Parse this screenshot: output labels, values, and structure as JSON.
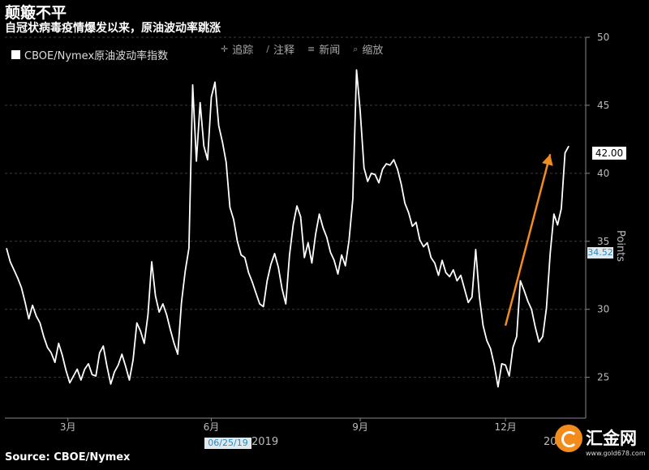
{
  "header": {
    "title": "颠簸不平",
    "subtitle": "自冠状病毒疫情爆发以来，原油波动率跳涨"
  },
  "legend": {
    "label": "CBOE/Nymex原油波动率指数"
  },
  "toolbar": [
    {
      "label": "追踪",
      "icon": "crosshair-icon"
    },
    {
      "label": "注释",
      "icon": "pencil-icon"
    },
    {
      "label": "新闻",
      "icon": "news-icon"
    },
    {
      "label": "缩放",
      "icon": "magnifier-icon"
    }
  ],
  "footer": {
    "source": "Source: CBOE/Nymex"
  },
  "watermark": {
    "name": "汇金网",
    "url": "www.gold678.com"
  },
  "markers": {
    "last_value": "42.00",
    "reference_value": "34.52",
    "crosshair_date": "06/25/19",
    "year": "2019",
    "year_next": "20"
  },
  "colors": {
    "line": "#ffffff",
    "arrow": "#f28c1c",
    "grid": "#3a3a3a",
    "axis": "#888888",
    "accent": "#2a8ac0"
  },
  "chart_data": {
    "type": "line",
    "ylabel": "Points",
    "ylim": [
      22,
      50
    ],
    "yticks": [
      25,
      30,
      35,
      40,
      45,
      50
    ],
    "xlim": [
      0,
      305
    ],
    "xticks": [
      {
        "label": "3月",
        "pos": 33
      },
      {
        "label": "6月",
        "pos": 110
      },
      {
        "label": "9月",
        "pos": 190
      },
      {
        "label": "12月",
        "pos": 268
      }
    ],
    "series": [
      {
        "name": "CBOE/Nymex原油波动率指数",
        "points": [
          [
            0,
            34.5
          ],
          [
            2,
            33.5
          ],
          [
            4,
            32.9
          ],
          [
            6,
            32.3
          ],
          [
            8,
            31.6
          ],
          [
            10,
            30.5
          ],
          [
            12,
            29.3
          ],
          [
            14,
            30.3
          ],
          [
            16,
            29.5
          ],
          [
            18,
            29.0
          ],
          [
            20,
            28.0
          ],
          [
            22,
            27.2
          ],
          [
            24,
            26.8
          ],
          [
            26,
            26.1
          ],
          [
            28,
            27.5
          ],
          [
            30,
            26.6
          ],
          [
            32,
            25.5
          ],
          [
            34,
            24.6
          ],
          [
            36,
            25.1
          ],
          [
            38,
            25.6
          ],
          [
            40,
            24.8
          ],
          [
            42,
            25.6
          ],
          [
            44,
            26.0
          ],
          [
            46,
            25.2
          ],
          [
            48,
            25.1
          ],
          [
            50,
            26.8
          ],
          [
            52,
            27.3
          ],
          [
            54,
            25.8
          ],
          [
            56,
            24.5
          ],
          [
            58,
            25.4
          ],
          [
            60,
            25.9
          ],
          [
            62,
            26.7
          ],
          [
            64,
            25.8
          ],
          [
            66,
            24.8
          ],
          [
            68,
            26.3
          ],
          [
            70,
            29.0
          ],
          [
            72,
            28.4
          ],
          [
            74,
            27.5
          ],
          [
            76,
            29.6
          ],
          [
            78,
            33.5
          ],
          [
            80,
            31.0
          ],
          [
            82,
            29.8
          ],
          [
            84,
            30.4
          ],
          [
            86,
            29.6
          ],
          [
            88,
            28.5
          ],
          [
            90,
            27.5
          ],
          [
            92,
            26.7
          ],
          [
            94,
            30.5
          ],
          [
            96,
            32.8
          ],
          [
            98,
            34.5
          ],
          [
            100,
            46.5
          ],
          [
            102,
            40.9
          ],
          [
            104,
            45.2
          ],
          [
            106,
            42.0
          ],
          [
            108,
            41.0
          ],
          [
            110,
            45.6
          ],
          [
            112,
            46.7
          ],
          [
            114,
            43.5
          ],
          [
            116,
            42.3
          ],
          [
            118,
            40.8
          ],
          [
            120,
            37.5
          ],
          [
            122,
            36.6
          ],
          [
            124,
            35.0
          ],
          [
            126,
            34.0
          ],
          [
            128,
            33.8
          ],
          [
            130,
            32.7
          ],
          [
            132,
            32.0
          ],
          [
            134,
            31.2
          ],
          [
            136,
            30.4
          ],
          [
            138,
            30.2
          ],
          [
            140,
            32.1
          ],
          [
            142,
            33.3
          ],
          [
            144,
            34.1
          ],
          [
            146,
            33.1
          ],
          [
            148,
            31.5
          ],
          [
            150,
            30.4
          ],
          [
            152,
            34.0
          ],
          [
            154,
            36.2
          ],
          [
            156,
            37.6
          ],
          [
            158,
            36.8
          ],
          [
            160,
            33.8
          ],
          [
            162,
            34.9
          ],
          [
            164,
            33.4
          ],
          [
            166,
            35.5
          ],
          [
            168,
            37.0
          ],
          [
            170,
            36.0
          ],
          [
            172,
            35.3
          ],
          [
            174,
            34.2
          ],
          [
            176,
            33.6
          ],
          [
            178,
            32.6
          ],
          [
            180,
            34.0
          ],
          [
            182,
            33.2
          ],
          [
            184,
            35.1
          ],
          [
            186,
            38.1
          ],
          [
            188,
            47.6
          ],
          [
            190,
            44.5
          ],
          [
            192,
            40.4
          ],
          [
            194,
            39.4
          ],
          [
            196,
            40.0
          ],
          [
            198,
            39.9
          ],
          [
            200,
            39.3
          ],
          [
            202,
            40.3
          ],
          [
            204,
            40.7
          ],
          [
            206,
            40.6
          ],
          [
            208,
            41.0
          ],
          [
            210,
            40.3
          ],
          [
            212,
            39.2
          ],
          [
            214,
            37.8
          ],
          [
            216,
            37.1
          ],
          [
            218,
            36.1
          ],
          [
            220,
            36.4
          ],
          [
            222,
            35.1
          ],
          [
            224,
            34.6
          ],
          [
            226,
            34.9
          ],
          [
            228,
            33.8
          ],
          [
            230,
            33.4
          ],
          [
            232,
            32.5
          ],
          [
            234,
            33.6
          ],
          [
            236,
            32.7
          ],
          [
            238,
            32.4
          ],
          [
            240,
            32.9
          ],
          [
            242,
            32.1
          ],
          [
            244,
            32.5
          ],
          [
            246,
            31.5
          ],
          [
            248,
            30.5
          ],
          [
            250,
            30.9
          ],
          [
            252,
            34.4
          ],
          [
            254,
            30.9
          ],
          [
            256,
            28.8
          ],
          [
            258,
            27.7
          ],
          [
            260,
            27.1
          ],
          [
            262,
            25.9
          ],
          [
            264,
            24.3
          ],
          [
            266,
            26.0
          ],
          [
            268,
            25.9
          ],
          [
            270,
            25.1
          ],
          [
            272,
            27.2
          ],
          [
            274,
            28.0
          ],
          [
            276,
            32.1
          ],
          [
            278,
            31.4
          ],
          [
            280,
            30.6
          ],
          [
            282,
            30.0
          ],
          [
            284,
            28.7
          ],
          [
            286,
            27.6
          ],
          [
            288,
            28.0
          ],
          [
            290,
            30.1
          ],
          [
            292,
            34.1
          ],
          [
            294,
            37.0
          ],
          [
            296,
            36.2
          ],
          [
            298,
            37.4
          ],
          [
            300,
            41.5
          ],
          [
            302,
            42.0
          ]
        ]
      }
    ],
    "annotations": [
      {
        "type": "arrow",
        "from": [
          268,
          28.8
        ],
        "to": [
          292,
          41.4
        ],
        "color": "#f28c1c"
      }
    ]
  }
}
